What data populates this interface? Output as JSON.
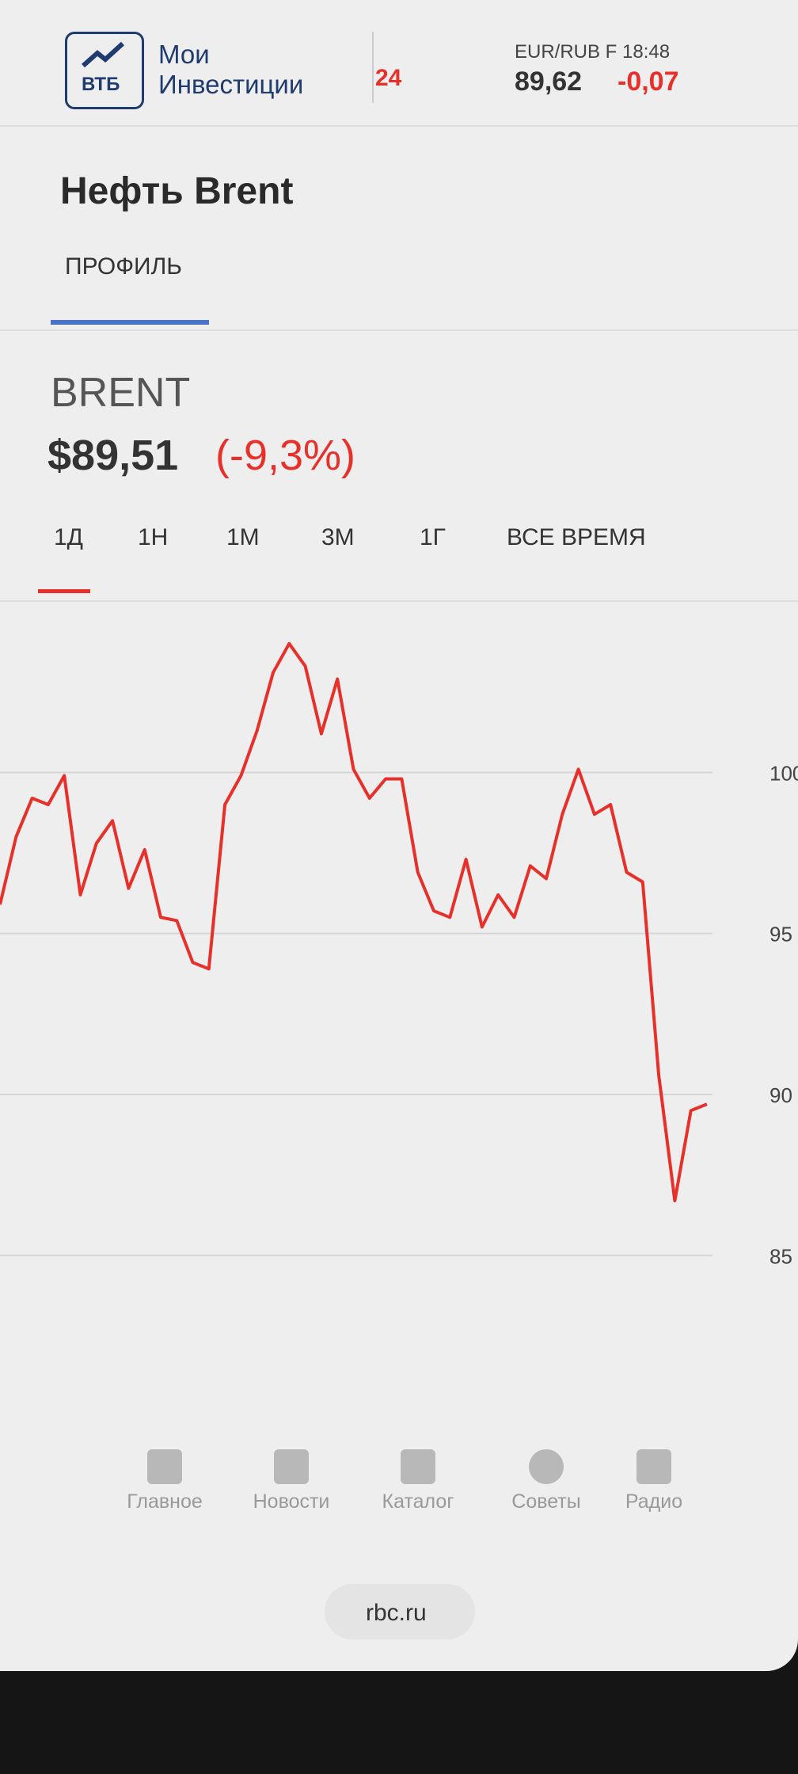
{
  "header": {
    "logo": "ВТБ",
    "app_name_1": "Мои",
    "app_name_2": "Инвестиции",
    "ticker_partial": "24",
    "quote_name": "EUR/RUB F 18:48",
    "quote_value": "89,62",
    "quote_change": "-0,07"
  },
  "page": {
    "title": "Нефть Brent",
    "tab": "ПРОФИЛЬ",
    "ticker": "BRENT",
    "price": "$89,51",
    "change": "(-9,3%)",
    "periods": [
      "1Д",
      "1Н",
      "1М",
      "3М",
      "1Г",
      "ВСЕ ВРЕМЯ"
    ]
  },
  "chart_data": {
    "type": "line",
    "color": "#e8302a",
    "grid": true,
    "values": [
      95.9,
      98.0,
      99.2,
      99.0,
      99.9,
      96.2,
      97.8,
      98.5,
      96.4,
      97.6,
      95.5,
      95.4,
      94.1,
      93.9,
      99.0,
      99.9,
      101.3,
      103.1,
      104.0,
      103.3,
      101.2,
      102.9,
      100.1,
      99.2,
      99.8,
      99.8,
      96.9,
      95.7,
      95.5,
      97.3,
      95.2,
      96.2,
      95.5,
      97.1,
      96.7,
      98.7,
      100.1,
      98.7,
      99.0,
      96.9,
      96.6,
      90.6,
      86.7,
      89.5,
      89.7
    ],
    "ylim": [
      84,
      105
    ],
    "yticks": [
      85,
      90,
      95,
      100
    ]
  },
  "nav": [
    "Главное",
    "Новости",
    "Каталог",
    "Советы",
    "Радио"
  ],
  "footer": {
    "url": "rbc.ru"
  }
}
